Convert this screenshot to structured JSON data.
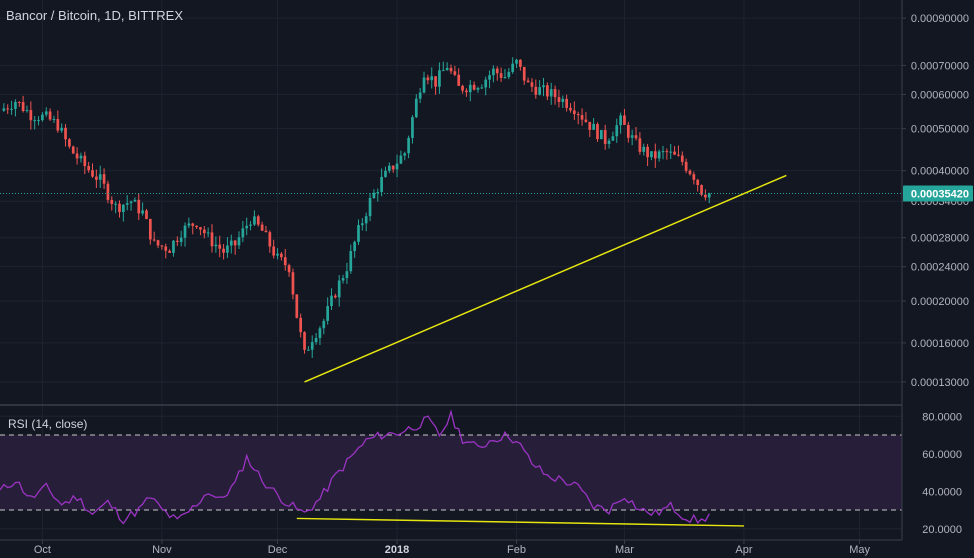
{
  "header": {
    "symbol_title": "Bancor / Bitcoin, 1D, BITTREX"
  },
  "rsi_panel": {
    "title": "RSI (14, close)",
    "upper_band": 70,
    "lower_band": 30
  },
  "colors": {
    "background": "#131722",
    "grid": "#1e2330",
    "up_candle": "#26a69a",
    "down_candle": "#ef5350",
    "trendline": "#e5e50f",
    "rsi_line": "#9b34c3",
    "rsi_fill": "#2a1f3d",
    "last_price_line": "#26a69a"
  },
  "chart_data": [
    {
      "type": "candlestick",
      "title": "Bancor / Bitcoin, 1D, BITTREX",
      "y_axis_ticks": [
        "0.00090000",
        "0.00070000",
        "0.00060000",
        "0.00050000",
        "0.00040000",
        "0.00034000",
        "0.00028000",
        "0.00024000",
        "0.00020000",
        "0.00016000",
        "0.00013000"
      ],
      "y_scale": "log",
      "ylim": [
        0.00012,
        0.00095
      ],
      "x_axis_ticks": [
        "Oct",
        "Nov",
        "Dec",
        "2018",
        "Feb",
        "Mar",
        "Apr",
        "May"
      ],
      "last_price_label": "0.00035420",
      "last_price": 0.0003542,
      "price_path": [
        [
          "2017-09-20",
          0.00055
        ],
        [
          "2017-09-24",
          0.00058
        ],
        [
          "2017-09-28",
          0.00054
        ],
        [
          "2017-10-02",
          0.00053
        ],
        [
          "2017-10-05",
          0.00051
        ],
        [
          "2017-10-08",
          0.00045
        ],
        [
          "2017-10-12",
          0.00041
        ],
        [
          "2017-10-16",
          0.00038
        ],
        [
          "2017-10-20",
          0.00033
        ],
        [
          "2017-10-24",
          0.00034
        ],
        [
          "2017-10-27",
          0.00032
        ],
        [
          "2017-10-30",
          0.00027
        ],
        [
          "2017-11-03",
          0.000265
        ],
        [
          "2017-11-06",
          0.00029
        ],
        [
          "2017-11-10",
          0.000305
        ],
        [
          "2017-11-13",
          0.00028
        ],
        [
          "2017-11-17",
          0.00026
        ],
        [
          "2017-11-20",
          0.00027
        ],
        [
          "2017-11-24",
          0.00031
        ],
        [
          "2017-11-27",
          0.00029
        ],
        [
          "2017-12-01",
          0.00025
        ],
        [
          "2017-12-04",
          0.00024
        ],
        [
          "2017-12-06",
          0.000185
        ],
        [
          "2017-12-08",
          0.00015
        ],
        [
          "2017-12-10",
          0.000165
        ],
        [
          "2017-12-13",
          0.00018
        ],
        [
          "2017-12-16",
          0.00021
        ],
        [
          "2017-12-19",
          0.00024
        ],
        [
          "2017-12-22",
          0.00029
        ],
        [
          "2017-12-25",
          0.00034
        ],
        [
          "2017-12-28",
          0.00038
        ],
        [
          "2017-12-31",
          0.00041
        ],
        [
          "2018-01-03",
          0.00044
        ],
        [
          "2018-01-06",
          0.00058
        ],
        [
          "2018-01-08",
          0.00068
        ],
        [
          "2018-01-11",
          0.00064
        ],
        [
          "2018-01-14",
          0.0007
        ],
        [
          "2018-01-17",
          0.00062
        ],
        [
          "2018-01-20",
          0.00063
        ],
        [
          "2018-01-23",
          0.00064
        ],
        [
          "2018-01-26",
          0.00068
        ],
        [
          "2018-01-29",
          0.00066
        ],
        [
          "2018-02-01",
          0.00071
        ],
        [
          "2018-02-04",
          0.00063
        ],
        [
          "2018-02-08",
          0.00061
        ],
        [
          "2018-02-12",
          0.00059
        ],
        [
          "2018-02-16",
          0.00056
        ],
        [
          "2018-02-20",
          0.00051
        ],
        [
          "2018-02-24",
          0.00047
        ],
        [
          "2018-02-28",
          0.00052
        ],
        [
          "2018-03-04",
          0.00046
        ],
        [
          "2018-03-08",
          0.00043
        ],
        [
          "2018-03-12",
          0.00044
        ],
        [
          "2018-03-16",
          0.00042
        ],
        [
          "2018-03-19",
          0.00039
        ],
        [
          "2018-03-21",
          0.00036
        ],
        [
          "2018-03-23",
          0.000354
        ]
      ],
      "trendlines": [
        {
          "from": [
            "2017-12-08",
            0.00013
          ],
          "to": [
            "2018-04-12",
            0.00039
          ]
        }
      ]
    },
    {
      "type": "line",
      "title": "RSI (14, close)",
      "y_axis_ticks": [
        "80.0000",
        "60.0000",
        "40.0000",
        "20.0000"
      ],
      "ylim": [
        14,
        86
      ],
      "bands": [
        70,
        30
      ],
      "rsi_path": [
        [
          "2017-09-20",
          40
        ],
        [
          "2017-09-24",
          46
        ],
        [
          "2017-09-28",
          36
        ],
        [
          "2017-10-02",
          42
        ],
        [
          "2017-10-06",
          33
        ],
        [
          "2017-10-10",
          37
        ],
        [
          "2017-10-14",
          28
        ],
        [
          "2017-10-18",
          34
        ],
        [
          "2017-10-22",
          25
        ],
        [
          "2017-10-26",
          30
        ],
        [
          "2017-10-29",
          37
        ],
        [
          "2017-11-01",
          30
        ],
        [
          "2017-11-05",
          24
        ],
        [
          "2017-11-09",
          31
        ],
        [
          "2017-11-13",
          40
        ],
        [
          "2017-11-16",
          35
        ],
        [
          "2017-11-20",
          44
        ],
        [
          "2017-11-23",
          58
        ],
        [
          "2017-11-27",
          46
        ],
        [
          "2017-12-01",
          38
        ],
        [
          "2017-12-04",
          33
        ],
        [
          "2017-12-08",
          28
        ],
        [
          "2017-12-12",
          36
        ],
        [
          "2017-12-16",
          48
        ],
        [
          "2017-12-20",
          58
        ],
        [
          "2017-12-24",
          67
        ],
        [
          "2017-12-28",
          70
        ],
        [
          "2018-01-01",
          71
        ],
        [
          "2018-01-05",
          74
        ],
        [
          "2018-01-09",
          78
        ],
        [
          "2018-01-12",
          70
        ],
        [
          "2018-01-15",
          80
        ],
        [
          "2018-01-18",
          68
        ],
        [
          "2018-01-22",
          63
        ],
        [
          "2018-01-26",
          68
        ],
        [
          "2018-01-30",
          70
        ],
        [
          "2018-02-02",
          64
        ],
        [
          "2018-02-05",
          55
        ],
        [
          "2018-02-09",
          48
        ],
        [
          "2018-02-13",
          46
        ],
        [
          "2018-02-17",
          42
        ],
        [
          "2018-02-21",
          32
        ],
        [
          "2018-02-25",
          30
        ],
        [
          "2018-03-01",
          38
        ],
        [
          "2018-03-05",
          30
        ],
        [
          "2018-03-09",
          28
        ],
        [
          "2018-03-13",
          32
        ],
        [
          "2018-03-17",
          26
        ],
        [
          "2018-03-21",
          24
        ],
        [
          "2018-03-23",
          28
        ]
      ],
      "trendlines": [
        {
          "from": [
            "2017-12-06",
            25.5
          ],
          "to": [
            "2018-04-01",
            21.5
          ]
        }
      ]
    }
  ]
}
